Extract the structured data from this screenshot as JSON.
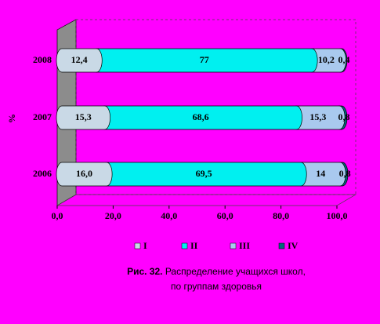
{
  "chart_data": {
    "type": "stacked-bar-horizontal",
    "y_axis_label": "%",
    "categories": [
      "2006",
      "2007",
      "2008"
    ],
    "series": [
      {
        "name": "I",
        "color": "#c9d9e6",
        "values": [
          16.0,
          15.3,
          12.4
        ],
        "value_labels": [
          "16,0",
          "15,3",
          "12,4"
        ]
      },
      {
        "name": "II",
        "color": "#00f0f0",
        "values": [
          69.5,
          68.6,
          77
        ],
        "value_labels": [
          "69,5",
          "68,6",
          "77"
        ]
      },
      {
        "name": "III",
        "color": "#a9c9ee",
        "values": [
          14,
          15.3,
          10.2
        ],
        "value_labels": [
          "14",
          "15,3",
          "10,2"
        ]
      },
      {
        "name": "IV",
        "color": "#00697a",
        "values": [
          0.8,
          0.8,
          0.4
        ],
        "value_labels": [
          "0,8",
          "0,8",
          "0,4"
        ]
      }
    ],
    "xlim": [
      0,
      100
    ],
    "xticks": [
      {
        "value": 0,
        "label": "0,0"
      },
      {
        "value": 20,
        "label": "20,0"
      },
      {
        "value": 40,
        "label": "40,0"
      },
      {
        "value": 60,
        "label": "60,0"
      },
      {
        "value": 80,
        "label": "80,0"
      },
      {
        "value": 100,
        "label": "100,0"
      }
    ],
    "caption_label": "Рис. 32.",
    "caption": [
      "Распределение учащихся школ,",
      "по группам здоровья"
    ]
  }
}
